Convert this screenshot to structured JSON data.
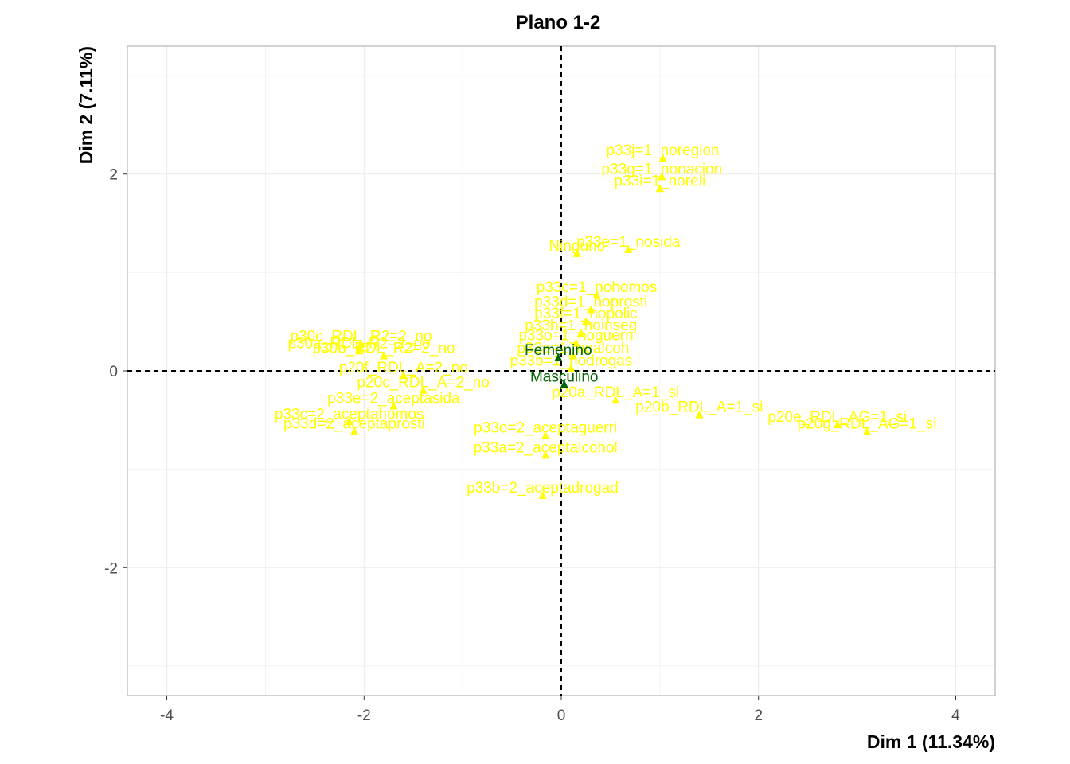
{
  "chart_data": {
    "type": "scatter",
    "title": "Plano 1-2",
    "xlabel": "Dim 1 (11.34%)",
    "ylabel": "Dim 2 (7.11%)",
    "xlim": [
      -4.4,
      4.4
    ],
    "ylim": [
      -3.3,
      3.3
    ],
    "x_ticks": [
      -4,
      -2,
      0,
      2,
      4
    ],
    "y_ticks": [
      -2,
      0,
      2
    ],
    "grid": true,
    "colors": {
      "modalities": "#ffff00",
      "supplementary": "#006400",
      "reference_line": "#000000",
      "panel_border": "#b3b3b3",
      "grid": "#ebebeb"
    },
    "series": [
      {
        "color": "#ffff00",
        "points": [
          {
            "x": 1.03,
            "y": 2.16,
            "label": "p33j=1_noregion"
          },
          {
            "x": 1.02,
            "y": 1.97,
            "label": "p33g=1_nonacion"
          },
          {
            "x": 1.0,
            "y": 1.85,
            "label": "p33i=1_noreli"
          },
          {
            "x": 0.68,
            "y": 1.23,
            "label": "p33e=1_nosida"
          },
          {
            "x": 0.16,
            "y": 1.19,
            "label": "Ninguno"
          },
          {
            "x": 0.36,
            "y": 0.77,
            "label": "p33c=1_nohomos"
          },
          {
            "x": 0.3,
            "y": 0.62,
            "label": "p33d=1_noprosti"
          },
          {
            "x": 0.25,
            "y": 0.5,
            "label": "p33f=1_nopolic"
          },
          {
            "x": 0.2,
            "y": 0.38,
            "label": "p33h=1_noinseg"
          },
          {
            "x": 0.15,
            "y": 0.28,
            "label": "p33o=1_noguerri"
          },
          {
            "x": 0.12,
            "y": 0.15,
            "label": "p33a=1_noalcoh"
          },
          {
            "x": 0.1,
            "y": 0.02,
            "label": "p33b=1_nodrogas"
          },
          {
            "x": 0.55,
            "y": -0.3,
            "label": "p20a_RDL_A=1_si"
          },
          {
            "x": 1.4,
            "y": -0.45,
            "label": "p20b_RDL_A=1_si"
          },
          {
            "x": 2.8,
            "y": -0.55,
            "label": "p20e_RDL_AG=1_si"
          },
          {
            "x": 3.1,
            "y": -0.62,
            "label": "p20g_RDL_AG=1_si"
          },
          {
            "x": -2.03,
            "y": 0.27,
            "label": "p30c_RDL_R2=2_no"
          },
          {
            "x": -2.05,
            "y": 0.2,
            "label": "p30a_RDL_R2=2_no"
          },
          {
            "x": -1.8,
            "y": 0.15,
            "label": "p30b_RDL_R2=2_no"
          },
          {
            "x": -1.6,
            "y": -0.05,
            "label": "p20f_RDL_A=2_no"
          },
          {
            "x": -1.4,
            "y": -0.2,
            "label": "p20c_RDL_A=2_no"
          },
          {
            "x": -1.7,
            "y": -0.36,
            "label": "p33e=2_aceptasida"
          },
          {
            "x": -2.15,
            "y": -0.52,
            "label": "p33c=2_aceptahomos"
          },
          {
            "x": -2.1,
            "y": -0.62,
            "label": "p33d=2_aceptaprosti"
          },
          {
            "x": -0.16,
            "y": -0.66,
            "label": "p33o=2_aceptaguerri"
          },
          {
            "x": -0.16,
            "y": -0.86,
            "label": "p33a=2_aceptalcohol"
          },
          {
            "x": -0.19,
            "y": -1.27,
            "label": "p33b=2_aceptadrogad"
          }
        ]
      },
      {
        "color": "#006400",
        "points": [
          {
            "x": -0.03,
            "y": 0.13,
            "label": "Femenino"
          },
          {
            "x": 0.03,
            "y": -0.14,
            "label": "Masculino"
          }
        ]
      }
    ]
  }
}
